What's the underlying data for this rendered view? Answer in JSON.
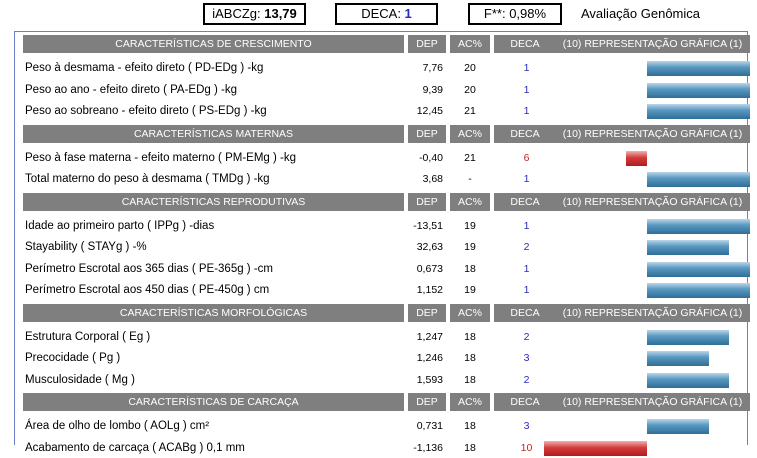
{
  "header": {
    "iabczg_label": "iABCZg: ",
    "iabczg_value": "13,79",
    "deca_label": "DECA: ",
    "deca_value": "1",
    "f_label": "F**: 0,98%",
    "title": "Avaliação Genômica"
  },
  "colors": {
    "deca_blue": "#2a2abf",
    "deca_red": "#cc2222",
    "header_gray": "#7f7f7f",
    "bar_blue": "#3f83ad",
    "bar_red": "#c82a2a",
    "frame_blue": "#6c7ec6"
  },
  "col_headers": {
    "dep": "DEP",
    "ac": "AC%",
    "deca": "DECA",
    "graph": "(10) REPRESENTAÇÃO GRÁFICA (1)"
  },
  "sections": [
    {
      "title": "CARACTERÍSTICAS DE CRESCIMENTO",
      "rows": [
        {
          "trait": "Peso à desmama - efeito direto ( PD-EDg ) -kg",
          "dep": "7,76",
          "ac": "20",
          "deca": "1",
          "bar": 1.0
        },
        {
          "trait": "Peso ao ano - efeito direto ( PA-EDg ) -kg",
          "dep": "9,39",
          "ac": "20",
          "deca": "1",
          "bar": 1.0
        },
        {
          "trait": "Peso ao sobreano - efeito direto ( PS-EDg ) -kg",
          "dep": "12,45",
          "ac": "21",
          "deca": "1",
          "bar": 1.0
        }
      ]
    },
    {
      "title": "CARACTERÍSTICAS MATERNAS",
      "rows": [
        {
          "trait": "Peso à fase materna - efeito materno ( PM-EMg ) -kg",
          "dep": "-0,40",
          "ac": "21",
          "deca": "6",
          "bar": -0.2
        },
        {
          "trait": "Total materno do peso à desmama ( TMDg ) -kg",
          "dep": "3,68",
          "ac": "-",
          "deca": "1",
          "bar": 1.0
        }
      ]
    },
    {
      "title": "CARACTERÍSTICAS REPRODUTIVAS",
      "rows": [
        {
          "trait": "Idade ao primeiro parto ( IPPg ) -dias",
          "dep": "-13,51",
          "ac": "19",
          "deca": "1",
          "bar": 1.0
        },
        {
          "trait": "Stayability ( STAYg ) -%",
          "dep": "32,63",
          "ac": "19",
          "deca": "2",
          "bar": 0.8
        },
        {
          "trait": "Perímetro Escrotal aos 365 dias ( PE-365g ) -cm",
          "dep": "0,673",
          "ac": "18",
          "deca": "1",
          "bar": 1.0
        },
        {
          "trait": "Perímetro Escrotal aos 450 dias ( PE-450g ) cm",
          "dep": "1,152",
          "ac": "19",
          "deca": "1",
          "bar": 1.0
        }
      ]
    },
    {
      "title": "CARACTERÍSTICAS MORFOLÓGICAS",
      "rows": [
        {
          "trait": "Estrutura Corporal ( Eg )",
          "dep": "1,247",
          "ac": "18",
          "deca": "2",
          "bar": 0.8
        },
        {
          "trait": "Precocidade ( Pg )",
          "dep": "1,246",
          "ac": "18",
          "deca": "3",
          "bar": 0.6
        },
        {
          "trait": "Musculosidade ( Mg )",
          "dep": "1,593",
          "ac": "18",
          "deca": "2",
          "bar": 0.8
        }
      ]
    },
    {
      "title": "CARACTERÍSTICAS DE CARCAÇA",
      "rows": [
        {
          "trait": "Área de olho de lombo ( AOLg ) cm²",
          "dep": "0,731",
          "ac": "18",
          "deca": "3",
          "bar": 0.6
        },
        {
          "trait": "Acabamento de carcaça ( ACABg ) 0,1 mm",
          "dep": "-1,136",
          "ac": "18",
          "deca": "10",
          "bar": -1.0
        }
      ]
    }
  ]
}
